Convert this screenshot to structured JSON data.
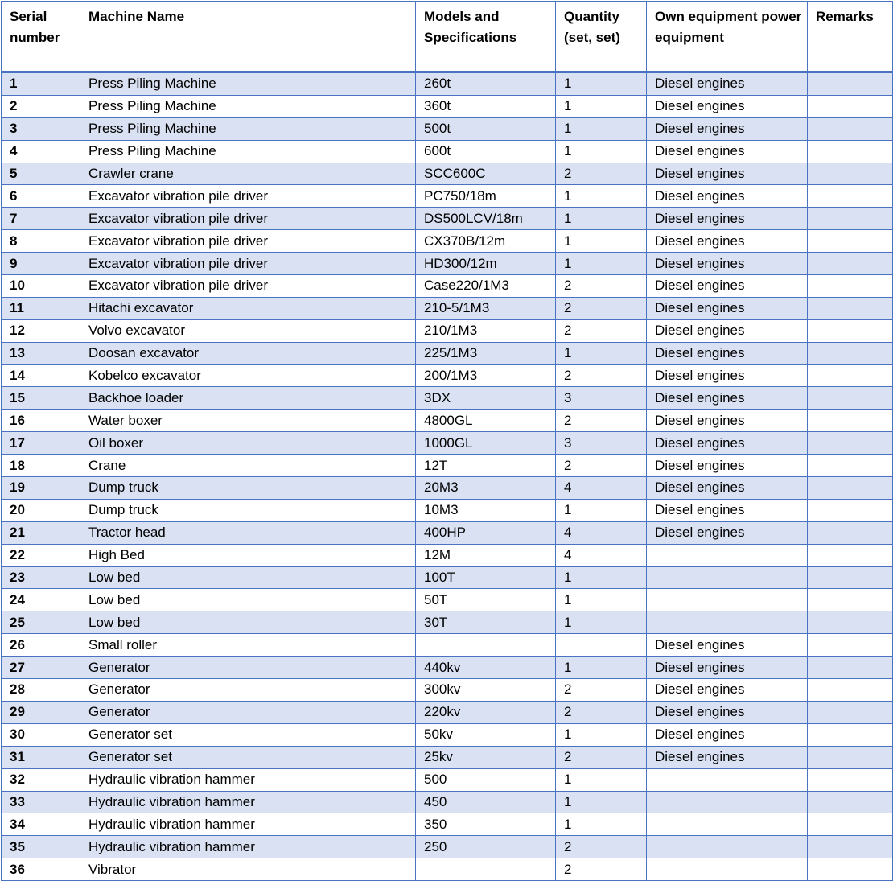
{
  "table": {
    "header": [
      "Serial number",
      "Machine Name",
      "Models and Specifications",
      "Quantity (set, set)",
      "Own equipment power equipment",
      "Remarks"
    ],
    "rows": [
      [
        "1",
        "Press Piling Machine",
        "260t",
        "1",
        "Diesel engines",
        null
      ],
      [
        "2",
        "Press Piling Machine",
        "360t",
        "1",
        "Diesel engines",
        null
      ],
      [
        "3",
        "Press Piling Machine",
        "500t",
        "1",
        "Diesel engines",
        null
      ],
      [
        "4",
        "Press Piling Machine",
        "600t",
        "1",
        "Diesel engines",
        null
      ],
      [
        "5",
        "Crawler crane",
        "SCC600C",
        "2",
        "Diesel engines",
        null
      ],
      [
        "6",
        "Excavator vibration pile driver",
        "PC750/18m",
        "1",
        "Diesel engines",
        null
      ],
      [
        "7",
        "Excavator vibration pile driver",
        "DS500LCV/18m",
        "1",
        "Diesel engines",
        null
      ],
      [
        "8",
        "Excavator vibration pile driver",
        "CX370B/12m",
        "1",
        "Diesel engines",
        null
      ],
      [
        "9",
        "Excavator vibration pile driver",
        "HD300/12m",
        "1",
        "Diesel engines",
        null
      ],
      [
        "10",
        "Excavator vibration pile driver",
        "Case220/1M3",
        "2",
        "Diesel engines",
        null
      ],
      [
        "11",
        "Hitachi excavator",
        "210-5/1M3",
        "2",
        "Diesel engines",
        null
      ],
      [
        "12",
        "Volvo excavator",
        "210/1M3",
        "2",
        "Diesel engines",
        null
      ],
      [
        "13",
        "Doosan excavator",
        "225/1M3",
        "1",
        "Diesel engines",
        null
      ],
      [
        "14",
        "Kobelco excavator",
        "200/1M3",
        "2",
        "Diesel engines",
        null
      ],
      [
        "15",
        "Backhoe loader",
        "3DX",
        "3",
        "Diesel engines",
        null
      ],
      [
        "16",
        "Water boxer",
        "4800GL",
        "2",
        "Diesel engines",
        null
      ],
      [
        "17",
        "Oil boxer",
        "1000GL",
        "3",
        "Diesel engines",
        null
      ],
      [
        "18",
        "Crane",
        "12T",
        "2",
        "Diesel engines",
        null
      ],
      [
        "19",
        "Dump truck",
        "20M3",
        "4",
        "Diesel engines",
        null
      ],
      [
        "20",
        "Dump truck",
        "10M3",
        "1",
        "Diesel engines",
        null
      ],
      [
        "21",
        "Tractor head",
        "400HP",
        "4",
        "Diesel engines",
        null
      ],
      [
        "22",
        "High Bed",
        "12M",
        "4",
        null,
        null
      ],
      [
        "23",
        "Low bed",
        "100T",
        "1",
        null,
        null
      ],
      [
        "24",
        "Low bed",
        "50T",
        "1",
        null,
        null
      ],
      [
        "25",
        "Low bed",
        "30T",
        "1",
        null,
        null
      ],
      [
        "26",
        "Small roller",
        null,
        null,
        "Diesel engines",
        null
      ],
      [
        "27",
        "Generator",
        "440kv",
        "1",
        "Diesel engines",
        null
      ],
      [
        "28",
        "Generator",
        "300kv",
        "2",
        "Diesel engines",
        null
      ],
      [
        "29",
        "Generator",
        "220kv",
        "2",
        "Diesel engines",
        null
      ],
      [
        "30",
        "Generator set",
        "50kv",
        "1",
        "Diesel engines",
        null
      ],
      [
        "31",
        "Generator set",
        "25kv",
        "2",
        "Diesel engines",
        null
      ],
      [
        "32",
        "Hydraulic vibration hammer",
        "500",
        "1",
        null,
        null
      ],
      [
        "33",
        "Hydraulic vibration hammer",
        "450",
        "1",
        null,
        null
      ],
      [
        "34",
        "Hydraulic vibration hammer",
        "350",
        "1",
        null,
        null
      ],
      [
        "35",
        "Hydraulic vibration hammer",
        "250",
        "2",
        null,
        null
      ],
      [
        "36",
        "Vibrator",
        null,
        "2",
        null,
        null
      ]
    ]
  }
}
